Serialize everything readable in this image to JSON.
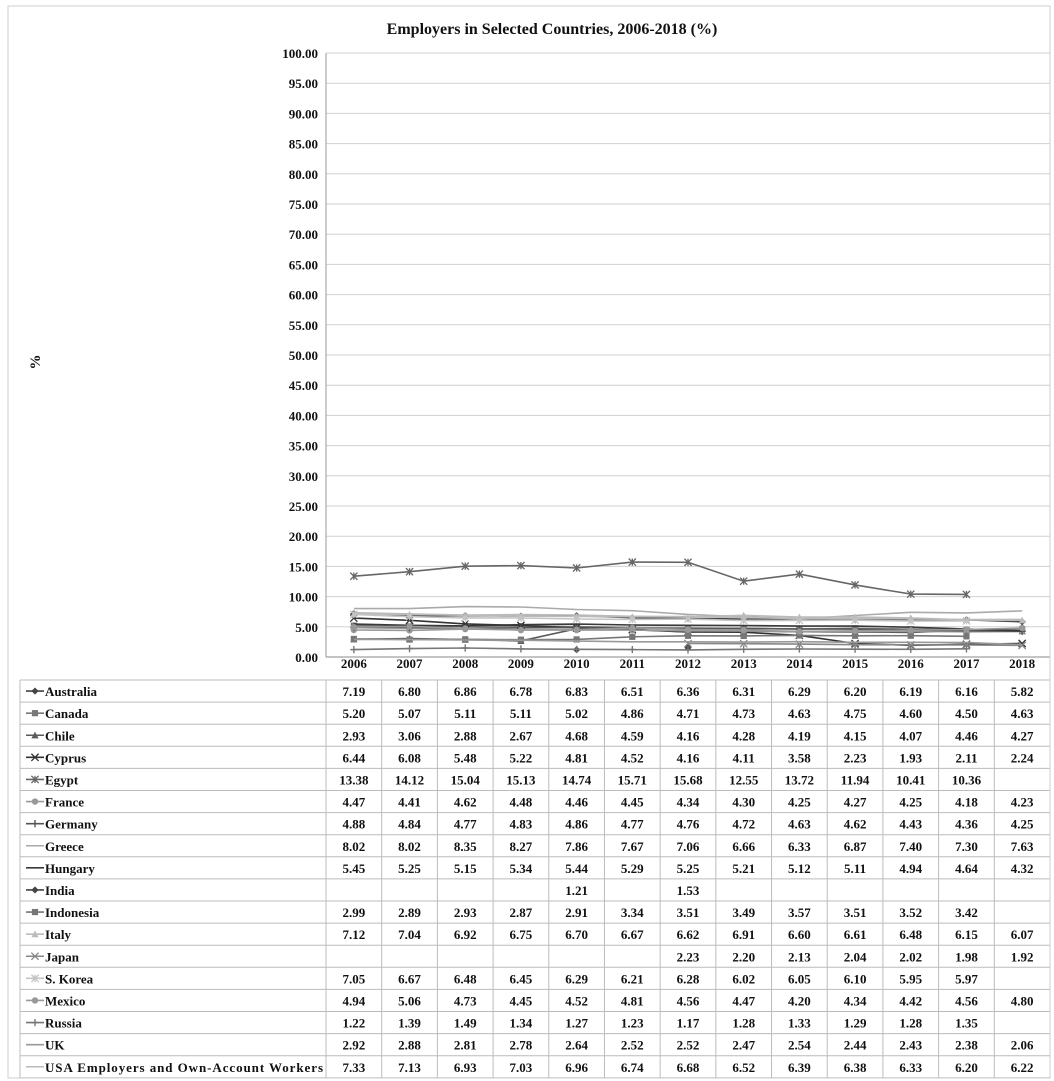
{
  "chart_data": {
    "type": "line",
    "title": "Employers in Selected Countries, 2006-2018 (%)",
    "ylabel": "%",
    "xlabel": "",
    "ylim": [
      0,
      100
    ],
    "yticks": [
      "0.00",
      "5.00",
      "10.00",
      "15.00",
      "20.00",
      "25.00",
      "30.00",
      "35.00",
      "40.00",
      "45.00",
      "50.00",
      "55.00",
      "60.00",
      "65.00",
      "70.00",
      "75.00",
      "80.00",
      "85.00",
      "90.00",
      "95.00",
      "100.00"
    ],
    "categories": [
      "2006",
      "2007",
      "2008",
      "2009",
      "2010",
      "2011",
      "2012",
      "2013",
      "2014",
      "2015",
      "2016",
      "2017",
      "2018"
    ],
    "grid": true,
    "legend": "data-table-below",
    "series": [
      {
        "name": "Australia",
        "color": "#444444",
        "marker": "diamond",
        "values": [
          7.19,
          6.8,
          6.86,
          6.78,
          6.83,
          6.51,
          6.36,
          6.31,
          6.29,
          6.2,
          6.19,
          6.16,
          5.82
        ]
      },
      {
        "name": "Canada",
        "color": "#777777",
        "marker": "square",
        "values": [
          5.2,
          5.07,
          5.11,
          5.11,
          5.02,
          4.86,
          4.71,
          4.73,
          4.63,
          4.75,
          4.6,
          4.5,
          4.63
        ]
      },
      {
        "name": "Chile",
        "color": "#5a5a5a",
        "marker": "triangle",
        "values": [
          2.93,
          3.06,
          2.88,
          2.67,
          4.68,
          4.59,
          4.16,
          4.28,
          4.19,
          4.15,
          4.07,
          4.46,
          4.27
        ]
      },
      {
        "name": "Cyprus",
        "color": "#333333",
        "marker": "x",
        "values": [
          6.44,
          6.08,
          5.48,
          5.22,
          4.81,
          4.52,
          4.16,
          4.11,
          3.58,
          2.23,
          1.93,
          2.11,
          2.24
        ]
      },
      {
        "name": "Egypt",
        "color": "#666666",
        "marker": "star",
        "values": [
          13.38,
          14.12,
          15.04,
          15.13,
          14.74,
          15.71,
          15.68,
          12.55,
          13.72,
          11.94,
          10.41,
          10.36,
          null
        ]
      },
      {
        "name": "France",
        "color": "#999999",
        "marker": "circle",
        "values": [
          4.47,
          4.41,
          4.62,
          4.48,
          4.46,
          4.45,
          4.34,
          4.3,
          4.25,
          4.27,
          4.25,
          4.18,
          4.23
        ]
      },
      {
        "name": "Germany",
        "color": "#555555",
        "marker": "plus",
        "values": [
          4.88,
          4.84,
          4.77,
          4.83,
          4.86,
          4.77,
          4.76,
          4.72,
          4.63,
          4.62,
          4.43,
          4.36,
          4.25
        ]
      },
      {
        "name": "Greece",
        "color": "#aaaaaa",
        "marker": "none",
        "values": [
          8.02,
          8.02,
          8.35,
          8.27,
          7.86,
          7.67,
          7.06,
          6.66,
          6.33,
          6.87,
          7.4,
          7.3,
          7.63
        ]
      },
      {
        "name": "Hungary",
        "color": "#3a3a3a",
        "marker": "none",
        "values": [
          5.45,
          5.25,
          5.15,
          5.34,
          5.44,
          5.29,
          5.25,
          5.21,
          5.12,
          5.11,
          4.94,
          4.64,
          4.32
        ]
      },
      {
        "name": "India",
        "color": "#444444",
        "marker": "diamond",
        "values": [
          null,
          null,
          null,
          null,
          1.21,
          null,
          1.53,
          null,
          null,
          null,
          null,
          null,
          null
        ]
      },
      {
        "name": "Indonesia",
        "color": "#777777",
        "marker": "square",
        "values": [
          2.99,
          2.89,
          2.93,
          2.87,
          2.91,
          3.34,
          3.51,
          3.49,
          3.57,
          3.51,
          3.52,
          3.42,
          null
        ]
      },
      {
        "name": "Italy",
        "color": "#bbbbbb",
        "marker": "triangle",
        "values": [
          7.12,
          7.04,
          6.92,
          6.75,
          6.7,
          6.67,
          6.62,
          6.91,
          6.6,
          6.61,
          6.48,
          6.15,
          6.07
        ]
      },
      {
        "name": "Japan",
        "color": "#888888",
        "marker": "x",
        "values": [
          null,
          null,
          null,
          null,
          null,
          null,
          2.23,
          2.2,
          2.13,
          2.04,
          2.02,
          1.98,
          1.92
        ]
      },
      {
        "name": "S. Korea",
        "color": "#c4c4c4",
        "marker": "star",
        "values": [
          7.05,
          6.67,
          6.48,
          6.45,
          6.29,
          6.21,
          6.28,
          6.02,
          6.05,
          6.1,
          5.95,
          5.97,
          null
        ]
      },
      {
        "name": "Mexico",
        "color": "#999999",
        "marker": "circle",
        "values": [
          4.94,
          5.06,
          4.73,
          4.45,
          4.52,
          4.81,
          4.56,
          4.47,
          4.2,
          4.34,
          4.42,
          4.56,
          4.8
        ]
      },
      {
        "name": "Russia",
        "color": "#777777",
        "marker": "plus",
        "values": [
          1.22,
          1.39,
          1.49,
          1.34,
          1.27,
          1.23,
          1.17,
          1.28,
          1.33,
          1.29,
          1.28,
          1.35,
          null
        ]
      },
      {
        "name": "UK",
        "color": "#999999",
        "marker": "none",
        "values": [
          2.92,
          2.88,
          2.81,
          2.78,
          2.64,
          2.52,
          2.52,
          2.47,
          2.54,
          2.44,
          2.43,
          2.38,
          2.06
        ]
      },
      {
        "name": "USA Employers and Own-Account Workers",
        "color": "#bbbbbb",
        "marker": "none",
        "values": [
          7.33,
          7.13,
          6.93,
          7.03,
          6.96,
          6.74,
          6.68,
          6.52,
          6.39,
          6.38,
          6.33,
          6.2,
          6.22
        ]
      }
    ]
  }
}
